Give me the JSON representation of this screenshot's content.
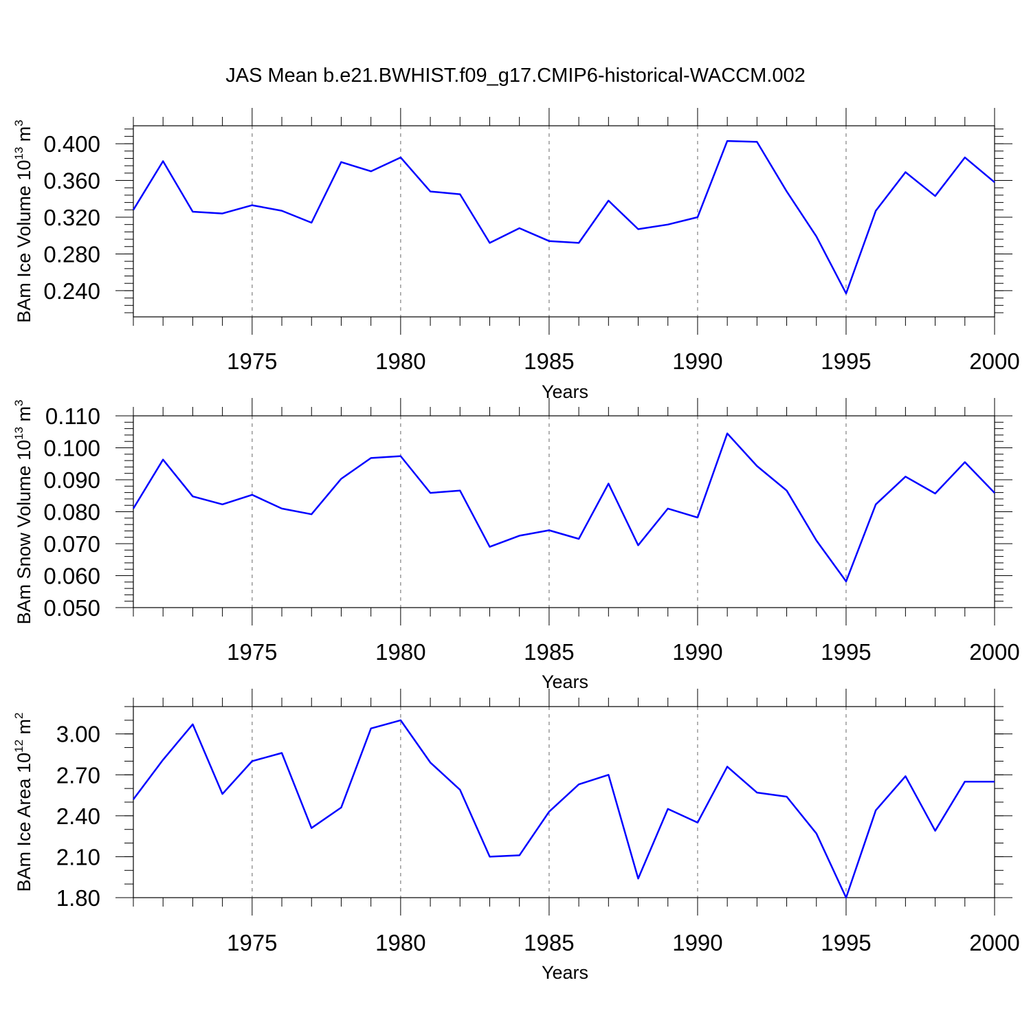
{
  "chart_data": {
    "title": "JAS Mean b.e21.BWHIST.f09_g17.CMIP6-historical-WACCM.002",
    "panels": [
      {
        "type": "line",
        "ylabel_main": "BAm Ice Volume 10",
        "ylabel_exp": "13",
        "ylabel_unit": "m",
        "ylabel_unit_exp": "3",
        "xlabel": "Years",
        "xlim": [
          1971,
          2000
        ],
        "ylim": [
          0.2115,
          0.4195
        ],
        "yticks": [
          0.24,
          0.28,
          0.32,
          0.36,
          0.4
        ],
        "ytick_labels": [
          "0.240",
          "0.280",
          "0.320",
          "0.360",
          "0.400"
        ],
        "yminor_step": 0.008,
        "xticks": [
          1975,
          1980,
          1985,
          1990,
          1995,
          2000
        ],
        "xtick_labels": [
          "1975",
          "1980",
          "1985",
          "1990",
          "1995",
          "2000"
        ],
        "x": [
          1971,
          1972,
          1973,
          1974,
          1975,
          1976,
          1977,
          1978,
          1979,
          1980,
          1981,
          1982,
          1983,
          1984,
          1985,
          1986,
          1987,
          1988,
          1989,
          1990,
          1991,
          1992,
          1993,
          1994,
          1995,
          1996,
          1997,
          1998,
          1999,
          2000
        ],
        "series": [
          {
            "name": "BAm Ice Volume",
            "color": "#0000ff",
            "values": [
              0.328,
              0.381,
              0.326,
              0.324,
              0.333,
              0.327,
              0.314,
              0.38,
              0.37,
              0.385,
              0.348,
              0.345,
              0.292,
              0.308,
              0.294,
              0.292,
              0.338,
              0.307,
              0.312,
              0.32,
              0.403,
              0.402,
              0.348,
              0.299,
              0.237,
              0.327,
              0.369,
              0.343,
              0.385,
              0.358
            ]
          }
        ]
      },
      {
        "type": "line",
        "ylabel_main": "BAm Snow Volume 10",
        "ylabel_exp": "13",
        "ylabel_unit": "m",
        "ylabel_unit_exp": "3",
        "xlabel": "Years",
        "xlim": [
          1971,
          2000
        ],
        "ylim": [
          0.05,
          0.11
        ],
        "yticks": [
          0.05,
          0.06,
          0.07,
          0.08,
          0.09,
          0.1,
          0.11
        ],
        "ytick_labels": [
          "0.050",
          "0.060",
          "0.070",
          "0.080",
          "0.090",
          "0.100",
          "0.110"
        ],
        "yminor_step": 0.002,
        "xticks": [
          1975,
          1980,
          1985,
          1990,
          1995,
          2000
        ],
        "xtick_labels": [
          "1975",
          "1980",
          "1985",
          "1990",
          "1995",
          "2000"
        ],
        "x": [
          1971,
          1972,
          1973,
          1974,
          1975,
          1976,
          1977,
          1978,
          1979,
          1980,
          1981,
          1982,
          1983,
          1984,
          1985,
          1986,
          1987,
          1988,
          1989,
          1990,
          1991,
          1992,
          1993,
          1994,
          1995,
          1996,
          1997,
          1998,
          1999,
          2000
        ],
        "series": [
          {
            "name": "BAm Snow Volume",
            "color": "#0000ff",
            "values": [
              0.081,
              0.0963,
              0.0848,
              0.0823,
              0.0853,
              0.081,
              0.0792,
              0.0903,
              0.0968,
              0.0974,
              0.0859,
              0.0866,
              0.069,
              0.0725,
              0.0742,
              0.0715,
              0.0888,
              0.0695,
              0.081,
              0.0782,
              0.1045,
              0.0943,
              0.0866,
              0.071,
              0.0582,
              0.0823,
              0.091,
              0.0857,
              0.0955,
              0.0859
            ]
          }
        ]
      },
      {
        "type": "line",
        "ylabel_main": "BAm Ice Area 10",
        "ylabel_exp": "12",
        "ylabel_unit": "m",
        "ylabel_unit_exp": "2",
        "xlabel": "Years",
        "xlim": [
          1971,
          2000
        ],
        "ylim": [
          1.8,
          3.2
        ],
        "yticks": [
          1.8,
          2.1,
          2.4,
          2.7,
          3.0
        ],
        "ytick_labels": [
          "1.80",
          "2.10",
          "2.40",
          "2.70",
          "3.00"
        ],
        "yminor_step": 0.1,
        "xticks": [
          1975,
          1980,
          1985,
          1990,
          1995,
          2000
        ],
        "xtick_labels": [
          "1975",
          "1980",
          "1985",
          "1990",
          "1995",
          "2000"
        ],
        "x": [
          1971,
          1972,
          1973,
          1974,
          1975,
          1976,
          1977,
          1978,
          1979,
          1980,
          1981,
          1982,
          1983,
          1984,
          1985,
          1986,
          1987,
          1988,
          1989,
          1990,
          1991,
          1992,
          1993,
          1994,
          1995,
          1996,
          1997,
          1998,
          1999,
          2000
        ],
        "series": [
          {
            "name": "BAm Ice Area",
            "color": "#0000ff",
            "values": [
              2.52,
              2.81,
              3.07,
              2.56,
              2.8,
              2.86,
              2.31,
              2.46,
              3.04,
              3.1,
              2.79,
              2.59,
              2.1,
              2.11,
              2.43,
              2.63,
              2.7,
              1.94,
              2.45,
              2.35,
              2.76,
              2.57,
              2.54,
              2.27,
              1.8,
              2.44,
              2.69,
              2.29,
              2.65,
              2.65
            ]
          }
        ]
      }
    ]
  }
}
